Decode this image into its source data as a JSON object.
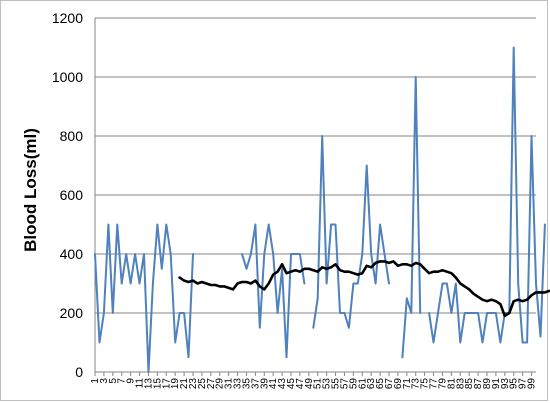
{
  "chart_data": {
    "type": "line",
    "title": "",
    "xlabel": "",
    "ylabel": "Blood Loss(ml)",
    "ylim": [
      0,
      1200
    ],
    "yticks": [
      0,
      200,
      400,
      600,
      800,
      1000,
      1200
    ],
    "xlim": [
      1,
      100
    ],
    "xtick_labels": [
      "1",
      "3",
      "5",
      "7",
      "9",
      "11",
      "13",
      "15",
      "17",
      "19",
      "21",
      "23",
      "25",
      "27",
      "29",
      "31",
      "33",
      "35",
      "37",
      "39",
      "41",
      "43",
      "45",
      "47",
      "49",
      "51",
      "53",
      "55",
      "57",
      "59",
      "61",
      "63",
      "65",
      "67",
      "69",
      "71",
      "73",
      "75",
      "77",
      "79",
      "81",
      "83",
      "85",
      "87",
      "89",
      "91",
      "93",
      "95",
      "97",
      "99"
    ],
    "grid": "horizontal",
    "legend": "none",
    "series": [
      {
        "color": "#4f81bd",
        "style": "raw",
        "values": [
          400,
          100,
          200,
          500,
          200,
          500,
          300,
          400,
          300,
          400,
          300,
          400,
          0,
          300,
          500,
          350,
          500,
          400,
          100,
          200,
          200,
          50,
          400,
          null,
          null,
          null,
          null,
          null,
          null,
          null,
          null,
          null,
          null,
          400,
          350,
          400,
          500,
          150,
          400,
          500,
          400,
          200,
          350,
          50,
          400,
          400,
          400,
          300,
          null,
          150,
          250,
          800,
          300,
          500,
          500,
          200,
          200,
          150,
          300,
          300,
          400,
          700,
          400,
          300,
          500,
          400,
          300,
          null,
          null,
          50,
          250,
          200,
          1000,
          200,
          null,
          200,
          100,
          200,
          300,
          300,
          200,
          300,
          100,
          200,
          200,
          200,
          200,
          100,
          200,
          200,
          200,
          100,
          200,
          200,
          1100,
          300,
          100,
          100,
          800,
          300,
          120,
          500
        ],
        "marks": false
      },
      {
        "color": "#000000",
        "style": "moving-average",
        "values": [
          null,
          null,
          null,
          null,
          null,
          null,
          null,
          null,
          null,
          null,
          null,
          null,
          null,
          null,
          null,
          null,
          null,
          null,
          null,
          320,
          310,
          305,
          310,
          300,
          305,
          300,
          295,
          295,
          290,
          290,
          285,
          280,
          300,
          305,
          305,
          300,
          310,
          290,
          280,
          300,
          330,
          340,
          365,
          335,
          340,
          345,
          340,
          350,
          350,
          345,
          340,
          355,
          350,
          355,
          365,
          345,
          340,
          340,
          335,
          330,
          335,
          360,
          355,
          370,
          375,
          375,
          370,
          375,
          360,
          365,
          365,
          360,
          370,
          365,
          350,
          335,
          340,
          340,
          345,
          340,
          335,
          320,
          300,
          290,
          280,
          265,
          255,
          245,
          240,
          245,
          240,
          230,
          190,
          200,
          240,
          245,
          240,
          245,
          260,
          270,
          270,
          270,
          275
        ]
      }
    ]
  }
}
